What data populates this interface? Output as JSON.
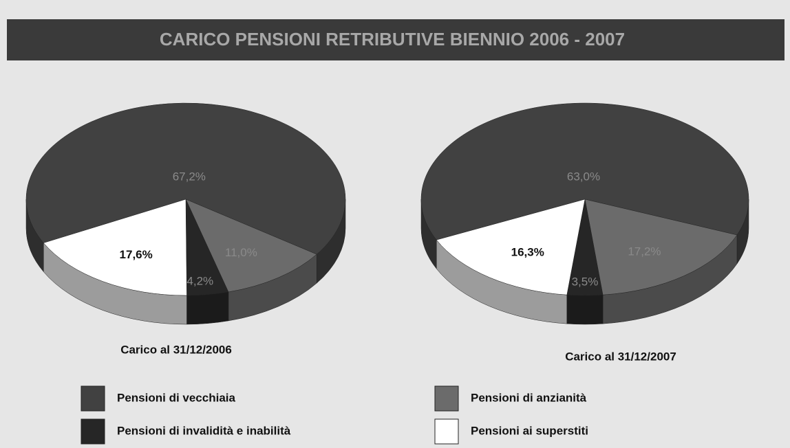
{
  "header": {
    "title": "CARICO PENSIONI RETRIBUTIVE BIENNIO 2006 - 2007"
  },
  "chart_data": [
    {
      "type": "pie3d",
      "title": "Carico al 31/12/2006",
      "categories": [
        "Pensioni di vecchiaia",
        "Pensioni di anzianità",
        "Pensioni di invalidità e inabilità",
        "Pensioni ai superstiti"
      ],
      "colors": [
        "#414141",
        "#6b6b6b",
        "#262626",
        "#ffffff"
      ],
      "values": [
        67.2,
        11.0,
        4.2,
        17.6
      ],
      "value_labels": [
        "67,2%",
        "11,0%",
        "4,2%",
        "17,6%"
      ]
    },
    {
      "type": "pie3d",
      "title": "Carico al 31/12/2007",
      "categories": [
        "Pensioni di vecchiaia",
        "Pensioni di anzianità",
        "Pensioni di invalidità e inabilità",
        "Pensioni ai superstiti"
      ],
      "colors": [
        "#414141",
        "#6b6b6b",
        "#262626",
        "#ffffff"
      ],
      "values": [
        63.0,
        17.2,
        3.5,
        16.3
      ],
      "value_labels": [
        "63,0%",
        "17,2%",
        "3,5%",
        "16,3%"
      ]
    }
  ]
}
